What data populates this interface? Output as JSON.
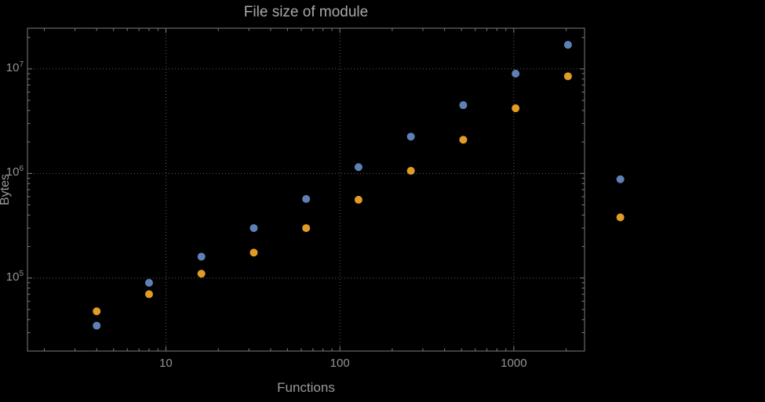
{
  "chart_data": {
    "type": "scatter",
    "title": "File size of module",
    "xlabel": "Functions",
    "ylabel": "Bytes",
    "xscale": "log",
    "yscale": "log",
    "xlim": [
      1.6,
      2550
    ],
    "ylim": [
      20000,
      24500000
    ],
    "x_ticks": [
      10,
      100,
      1000
    ],
    "y_ticks": [
      100000,
      1000000,
      10000000
    ],
    "grid": true,
    "legend": "none",
    "series": [
      {
        "name": "series-blue",
        "color": "#5E81B5",
        "points": [
          [
            4,
            35000
          ],
          [
            8,
            90000
          ],
          [
            16,
            160000
          ],
          [
            32,
            300000
          ],
          [
            64,
            570000
          ],
          [
            128,
            1150000
          ],
          [
            256,
            2250000
          ],
          [
            512,
            4500000
          ],
          [
            1024,
            9000000
          ],
          [
            2048,
            17000000
          ],
          [
            4096,
            880000
          ]
        ]
      },
      {
        "name": "series-orange",
        "color": "#E19C24",
        "points": [
          [
            4,
            48000
          ],
          [
            8,
            70000
          ],
          [
            16,
            110000
          ],
          [
            32,
            175000
          ],
          [
            64,
            300000
          ],
          [
            128,
            560000
          ],
          [
            256,
            1060000
          ],
          [
            512,
            2100000
          ],
          [
            1024,
            4200000
          ],
          [
            2048,
            8500000
          ],
          [
            4096,
            380000
          ]
        ]
      }
    ],
    "colors": {
      "background": "#000000",
      "frame": "#7d7d7d",
      "grid": "#5e5e5e",
      "text": "#9a9a9a"
    }
  }
}
